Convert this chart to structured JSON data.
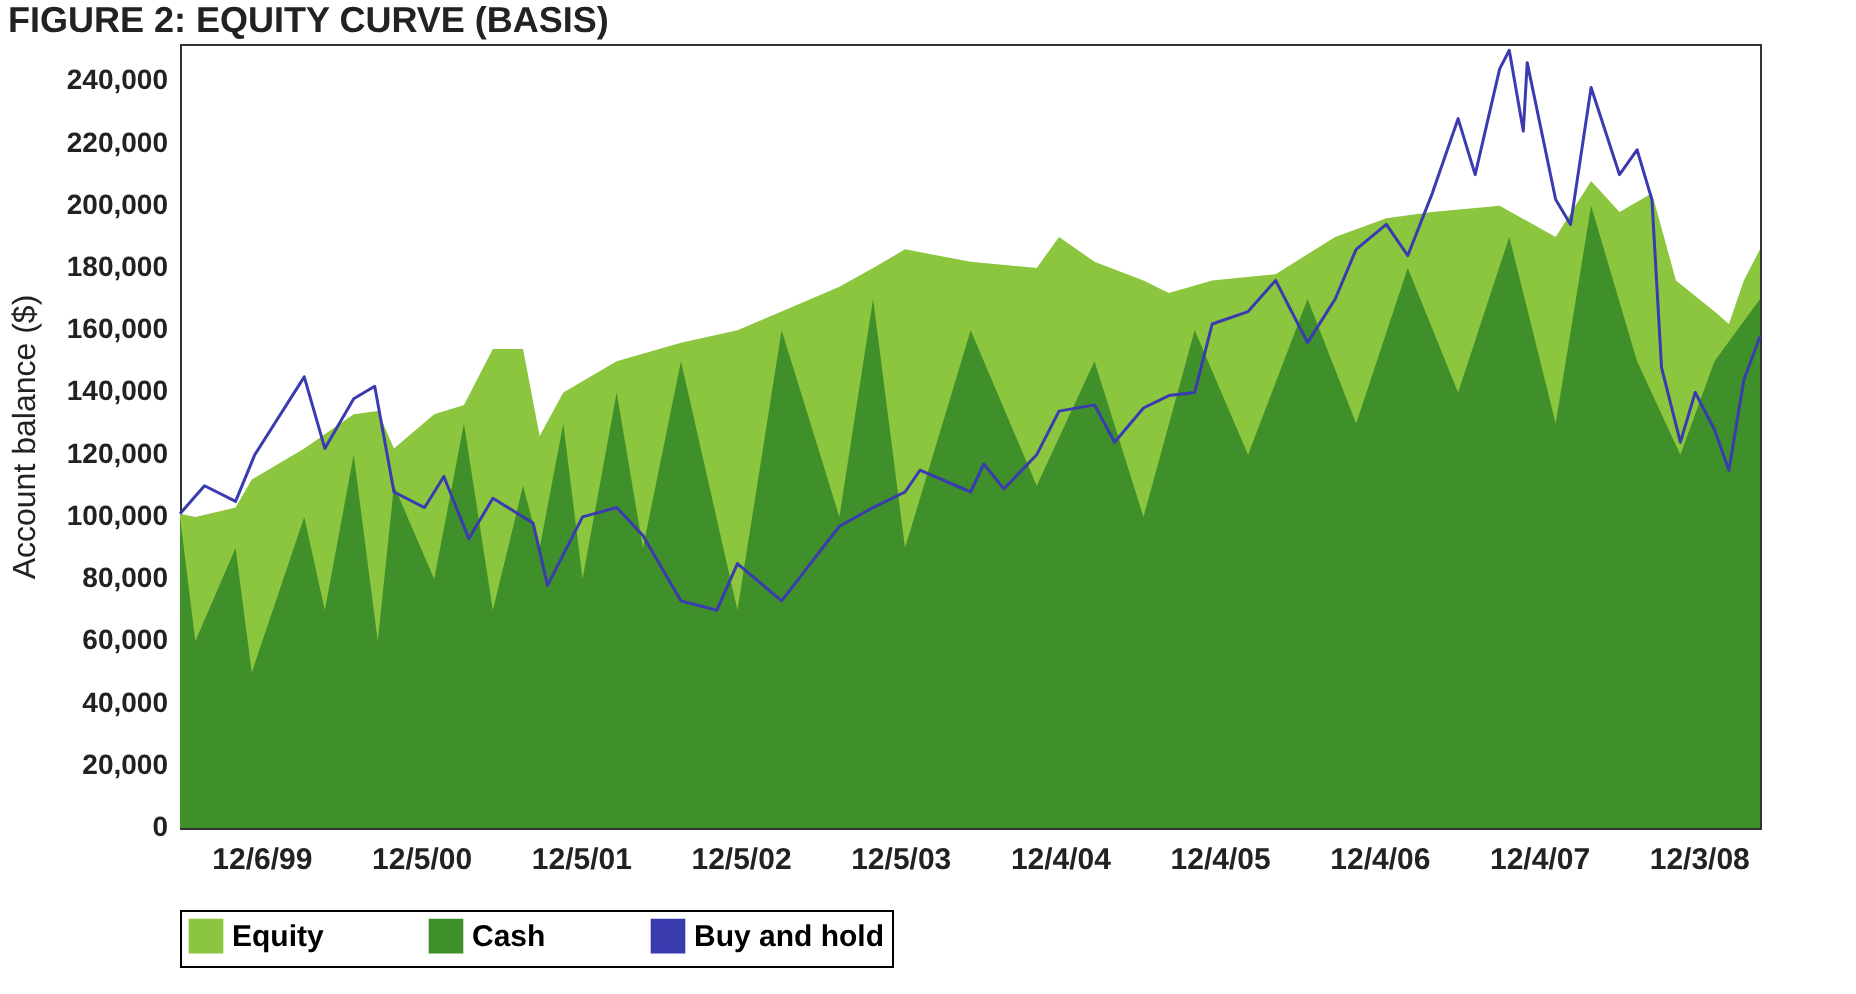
{
  "chart_data": {
    "type": "area",
    "title": "FIGURE 2: EQUITY CURVE (BASIS)",
    "ylabel": "Account balance ($)",
    "xlim": [
      "1999-06-03",
      "2009-04-22"
    ],
    "xticks": [
      {
        "value": "1999-12-06",
        "label": "12/6/99"
      },
      {
        "value": "2000-12-05",
        "label": "12/5/00"
      },
      {
        "value": "2001-12-05",
        "label": "12/5/01"
      },
      {
        "value": "2002-12-05",
        "label": "12/5/02"
      },
      {
        "value": "2003-12-05",
        "label": "12/5/03"
      },
      {
        "value": "2004-12-04",
        "label": "12/4/04"
      },
      {
        "value": "2005-12-04",
        "label": "12/4/05"
      },
      {
        "value": "2006-12-04",
        "label": "12/4/06"
      },
      {
        "value": "2007-12-04",
        "label": "12/4/07"
      },
      {
        "value": "2008-12-03",
        "label": "12/3/08"
      }
    ],
    "ylim": [
      0,
      252000
    ],
    "yticks": [
      0,
      {
        "value": 20000,
        "label": "20,000"
      },
      {
        "value": 40000,
        "label": "40,000"
      },
      {
        "value": 60000,
        "label": "60,000"
      },
      {
        "value": 80000,
        "label": "80,000"
      },
      {
        "value": 100000,
        "label": "100,000"
      },
      {
        "value": 120000,
        "label": "120,000"
      },
      {
        "value": 140000,
        "label": "140,000"
      },
      {
        "value": 160000,
        "label": "160,000"
      },
      {
        "value": 180000,
        "label": "180,000"
      },
      {
        "value": 200000,
        "label": "200,000"
      },
      {
        "value": 220000,
        "label": "220,000"
      },
      {
        "value": 240000,
        "label": "240,000"
      }
    ],
    "grid": false,
    "legend": "bottom",
    "series": [
      {
        "name": "Equity",
        "color": "#8cc63f",
        "x": [
          "1999-06-03",
          "1999-07-08",
          "1999-10-08",
          "1999-11-14",
          "2000-03-13",
          "2000-07-04",
          "2000-08-28",
          "2000-10-04",
          "2001-01-04",
          "2001-03-13",
          "2001-05-18",
          "2001-07-26",
          "2001-09-02",
          "2001-10-26",
          "2002-02-25",
          "2002-07-22",
          "2002-11-28",
          "2003-03-09",
          "2003-07-19",
          "2003-10-04",
          "2003-12-16",
          "2004-05-14",
          "2004-10-12",
          "2004-12-02",
          "2005-02-21",
          "2005-06-13",
          "2005-08-10",
          "2005-11-17",
          "2006-04-11",
          "2006-08-25",
          "2006-12-20",
          "2007-04-04",
          "2007-09-05",
          "2008-01-11",
          "2008-04-01",
          "2008-06-05",
          "2008-08-18",
          "2008-10-12",
          "2009-01-08",
          "2009-02-10",
          "2009-03-16",
          "2009-04-22"
        ],
        "values": [
          101000,
          100000,
          103000,
          112000,
          122000,
          133000,
          134000,
          122000,
          133000,
          136000,
          154000,
          154000,
          126000,
          140000,
          150000,
          156000,
          160000,
          166000,
          174000,
          180000,
          186000,
          182000,
          180000,
          190000,
          182000,
          176000,
          172000,
          176000,
          178000,
          190000,
          196000,
          198000,
          200000,
          190000,
          208000,
          198000,
          204000,
          176000,
          166000,
          162000,
          176000,
          186000
        ]
      },
      {
        "name": "Cash",
        "color": "#3f8f2a",
        "x": [
          "1999-06-03",
          "1999-07-08",
          "1999-10-08",
          "1999-11-14",
          "2000-03-13",
          "2000-04-29",
          "2000-07-04",
          "2000-08-28",
          "2000-10-04",
          "2001-01-04",
          "2001-03-13",
          "2001-05-18",
          "2001-07-26",
          "2001-09-02",
          "2001-10-26",
          "2001-12-09",
          "2002-02-25",
          "2002-04-26",
          "2002-07-22",
          "2002-11-28",
          "2003-03-09",
          "2003-07-19",
          "2003-10-04",
          "2003-12-16",
          "2004-05-14",
          "2004-10-12",
          "2005-02-21",
          "2005-06-13",
          "2005-10-08",
          "2006-02-07",
          "2006-06-23",
          "2006-10-12",
          "2007-02-07",
          "2007-06-02",
          "2007-09-27",
          "2008-01-11",
          "2008-04-01",
          "2008-07-15",
          "2008-10-22",
          "2009-01-08",
          "2009-04-22"
        ],
        "values": [
          100000,
          60000,
          90000,
          50000,
          100000,
          70000,
          120000,
          60000,
          110000,
          80000,
          130000,
          70000,
          110000,
          90000,
          130000,
          80000,
          140000,
          90000,
          150000,
          70000,
          160000,
          100000,
          170000,
          90000,
          160000,
          110000,
          150000,
          100000,
          160000,
          120000,
          170000,
          130000,
          180000,
          140000,
          190000,
          130000,
          200000,
          150000,
          120000,
          150000,
          170000
        ]
      },
      {
        "name": "Buy and hold",
        "type": "line",
        "color": "#3b3bb0",
        "x": [
          "1999-06-03",
          "1999-07-29",
          "1999-10-08",
          "1999-11-21",
          "2000-03-13",
          "2000-04-29",
          "2000-07-04",
          "2000-08-21",
          "2000-10-04",
          "2000-12-13",
          "2001-01-26",
          "2001-03-24",
          "2001-05-18",
          "2001-08-18",
          "2001-09-20",
          "2001-12-09",
          "2002-02-25",
          "2002-04-26",
          "2002-07-22",
          "2002-10-12",
          "2002-11-28",
          "2003-03-09",
          "2003-07-19",
          "2003-10-04",
          "2003-12-16",
          "2004-01-19",
          "2004-05-14",
          "2004-06-13",
          "2004-07-29",
          "2004-10-12",
          "2004-12-02",
          "2005-02-21",
          "2005-04-08",
          "2005-06-13",
          "2005-08-10",
          "2005-10-08",
          "2005-11-17",
          "2006-02-07",
          "2006-04-11",
          "2006-06-23",
          "2006-08-25",
          "2006-10-12",
          "2006-12-20",
          "2007-02-07",
          "2007-04-04",
          "2007-06-02",
          "2007-07-11",
          "2007-09-05",
          "2007-09-27",
          "2007-10-29",
          "2007-11-07",
          "2008-01-11",
          "2008-02-14",
          "2008-04-01",
          "2008-06-05",
          "2008-07-15",
          "2008-08-18",
          "2008-09-09",
          "2008-10-22",
          "2008-11-25",
          "2009-01-08",
          "2009-02-10",
          "2009-03-16",
          "2009-04-22"
        ],
        "values": [
          101000,
          110000,
          105000,
          120000,
          145000,
          122000,
          138000,
          142000,
          108000,
          103000,
          113000,
          93000,
          106000,
          98000,
          78000,
          100000,
          103000,
          94000,
          73000,
          70000,
          85000,
          73000,
          97000,
          103000,
          108000,
          115000,
          108000,
          117000,
          109000,
          120000,
          134000,
          136000,
          124000,
          135000,
          139000,
          140000,
          162000,
          166000,
          176000,
          156000,
          170000,
          186000,
          194000,
          184000,
          204000,
          228000,
          210000,
          244000,
          250000,
          224000,
          246000,
          202000,
          194000,
          238000,
          210000,
          218000,
          202000,
          148000,
          124000,
          140000,
          128000,
          115000,
          144000,
          158000
        ]
      }
    ]
  }
}
